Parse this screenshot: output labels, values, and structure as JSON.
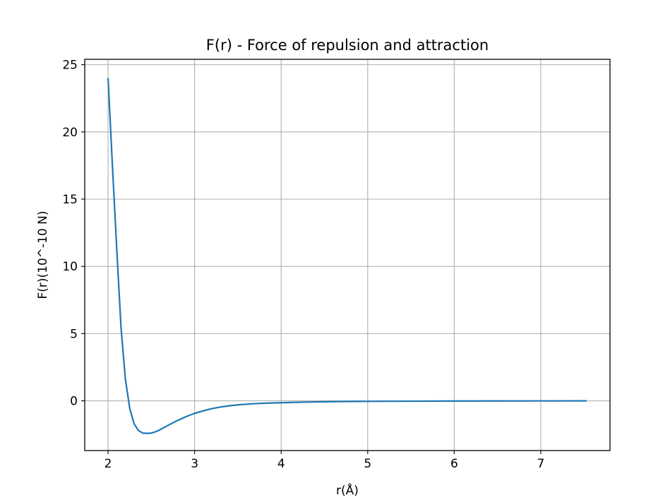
{
  "chart_data": {
    "type": "line",
    "title": "F(r) - Force of repulsion and attraction",
    "xlabel": "r(Å)",
    "ylabel": "F(r)(10^-10 N)",
    "xlim": [
      1.73,
      7.8
    ],
    "ylim": [
      -3.7,
      25.4
    ],
    "xticks": [
      2,
      3,
      4,
      5,
      6,
      7
    ],
    "yticks": [
      0,
      5,
      10,
      15,
      20,
      25
    ],
    "xtick_labels": [
      "2",
      "3",
      "4",
      "5",
      "6",
      "7"
    ],
    "ytick_labels": [
      "0",
      "5",
      "10",
      "15",
      "20",
      "25"
    ],
    "grid": true,
    "line_color": "#1f77b4",
    "grid_color": "#b0b0b0",
    "series": [
      {
        "x": [
          2.0,
          2.05,
          2.1,
          2.15,
          2.2,
          2.25,
          2.3,
          2.35,
          2.4,
          2.45,
          2.5,
          2.55,
          2.6,
          2.7,
          2.8,
          2.9,
          3.0,
          3.1,
          3.2,
          3.3,
          3.4,
          3.5,
          3.6,
          3.7,
          3.8,
          3.9,
          4.0,
          4.25,
          4.5,
          4.75,
          5.0,
          5.5,
          6.0,
          6.5,
          7.0,
          7.53
        ],
        "y": [
          24.0,
          17.5,
          11.3,
          5.4,
          1.6,
          -0.55,
          -1.7,
          -2.2,
          -2.4,
          -2.42,
          -2.4,
          -2.3,
          -2.15,
          -1.8,
          -1.47,
          -1.18,
          -0.93,
          -0.74,
          -0.58,
          -0.46,
          -0.37,
          -0.3,
          -0.25,
          -0.21,
          -0.18,
          -0.16,
          -0.14,
          -0.1,
          -0.07,
          -0.05,
          -0.04,
          -0.025,
          -0.015,
          -0.01,
          -0.006,
          -0.004
        ]
      }
    ]
  }
}
